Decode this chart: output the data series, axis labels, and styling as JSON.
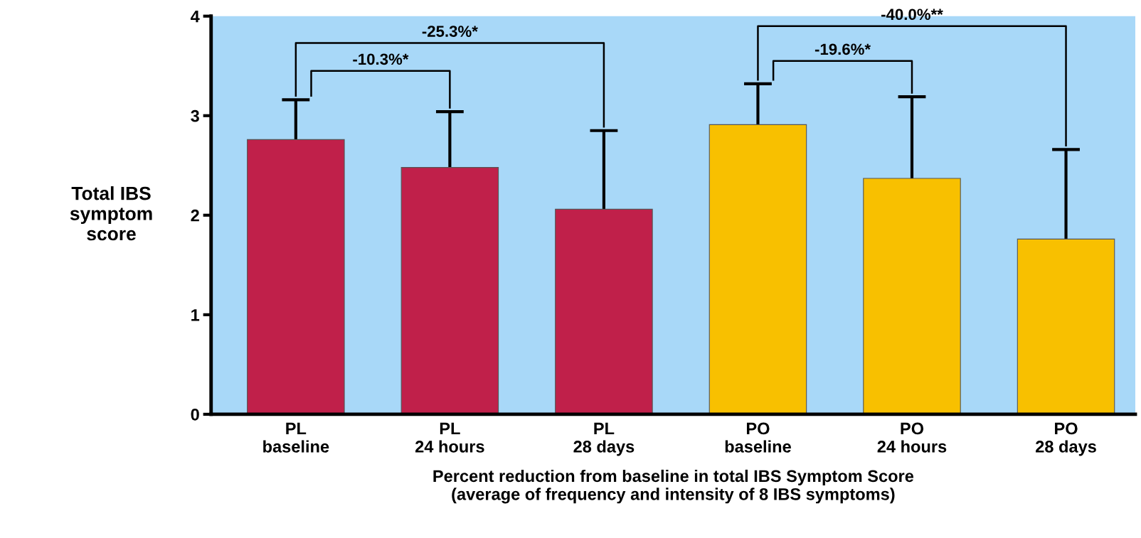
{
  "chart_data": {
    "type": "bar",
    "categories": [
      "PL\nbaseline",
      "PL\n24 hours",
      "PL\n28 days",
      "PO\nbaseline",
      "PO\n24 hours",
      "PO\n28 days"
    ],
    "values": [
      2.76,
      2.48,
      2.06,
      2.91,
      2.37,
      1.76
    ],
    "errors": [
      [
        2.76,
        3.16
      ],
      [
        2.48,
        3.04
      ],
      [
        2.06,
        2.85
      ],
      [
        2.91,
        3.32
      ],
      [
        2.37,
        3.19
      ],
      [
        1.76,
        2.66
      ]
    ],
    "colors": [
      "#c0204a",
      "#c0204a",
      "#c0204a",
      "#f8c000",
      "#f8c000",
      "#f8c000"
    ],
    "ylabel": "Total IBS\nsymptom\nscore",
    "xlabel": "Percent reduction from baseline in total IBS Symptom Score\n(average of frequency and intensity of 8 IBS symptoms)",
    "ylim": [
      0,
      4
    ],
    "yticks": [
      0,
      1,
      2,
      3,
      4
    ],
    "annotations": [
      "-10.3%*",
      "-25.3%*",
      "-19.6%*",
      "-40.0%**"
    ]
  }
}
